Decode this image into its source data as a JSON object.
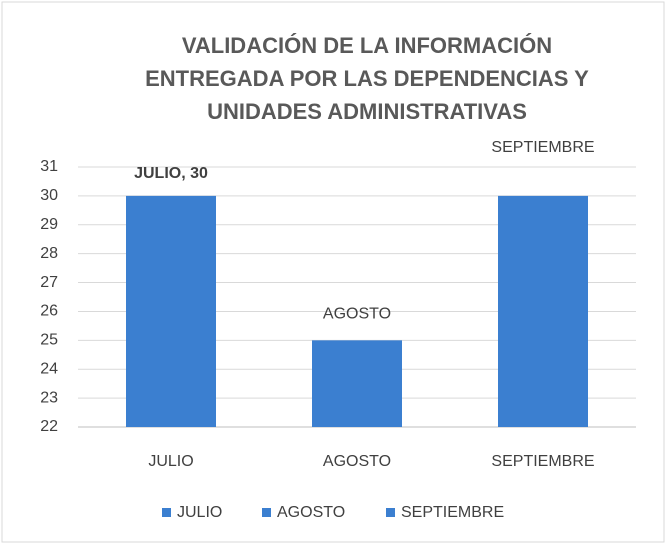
{
  "chart_data": {
    "type": "bar",
    "title": [
      "VALIDACIÓN DE LA INFORMACIÓN",
      "ENTREGADA POR LAS DEPENDENCIAS Y",
      "UNIDADES ADMINISTRATIVAS"
    ],
    "categories": [
      "JULIO",
      "AGOSTO",
      "SEPTIEMBRE"
    ],
    "values": [
      30,
      25,
      30
    ],
    "value_labels": [
      "JULIO, 30",
      "AGOSTO",
      "SEPTIEMBRE"
    ],
    "color": "#3b7fd0",
    "ylim": [
      22,
      31
    ],
    "yticks": [
      22,
      23,
      24,
      25,
      26,
      27,
      28,
      29,
      30,
      31
    ],
    "grid": true,
    "legend": "bottom"
  }
}
